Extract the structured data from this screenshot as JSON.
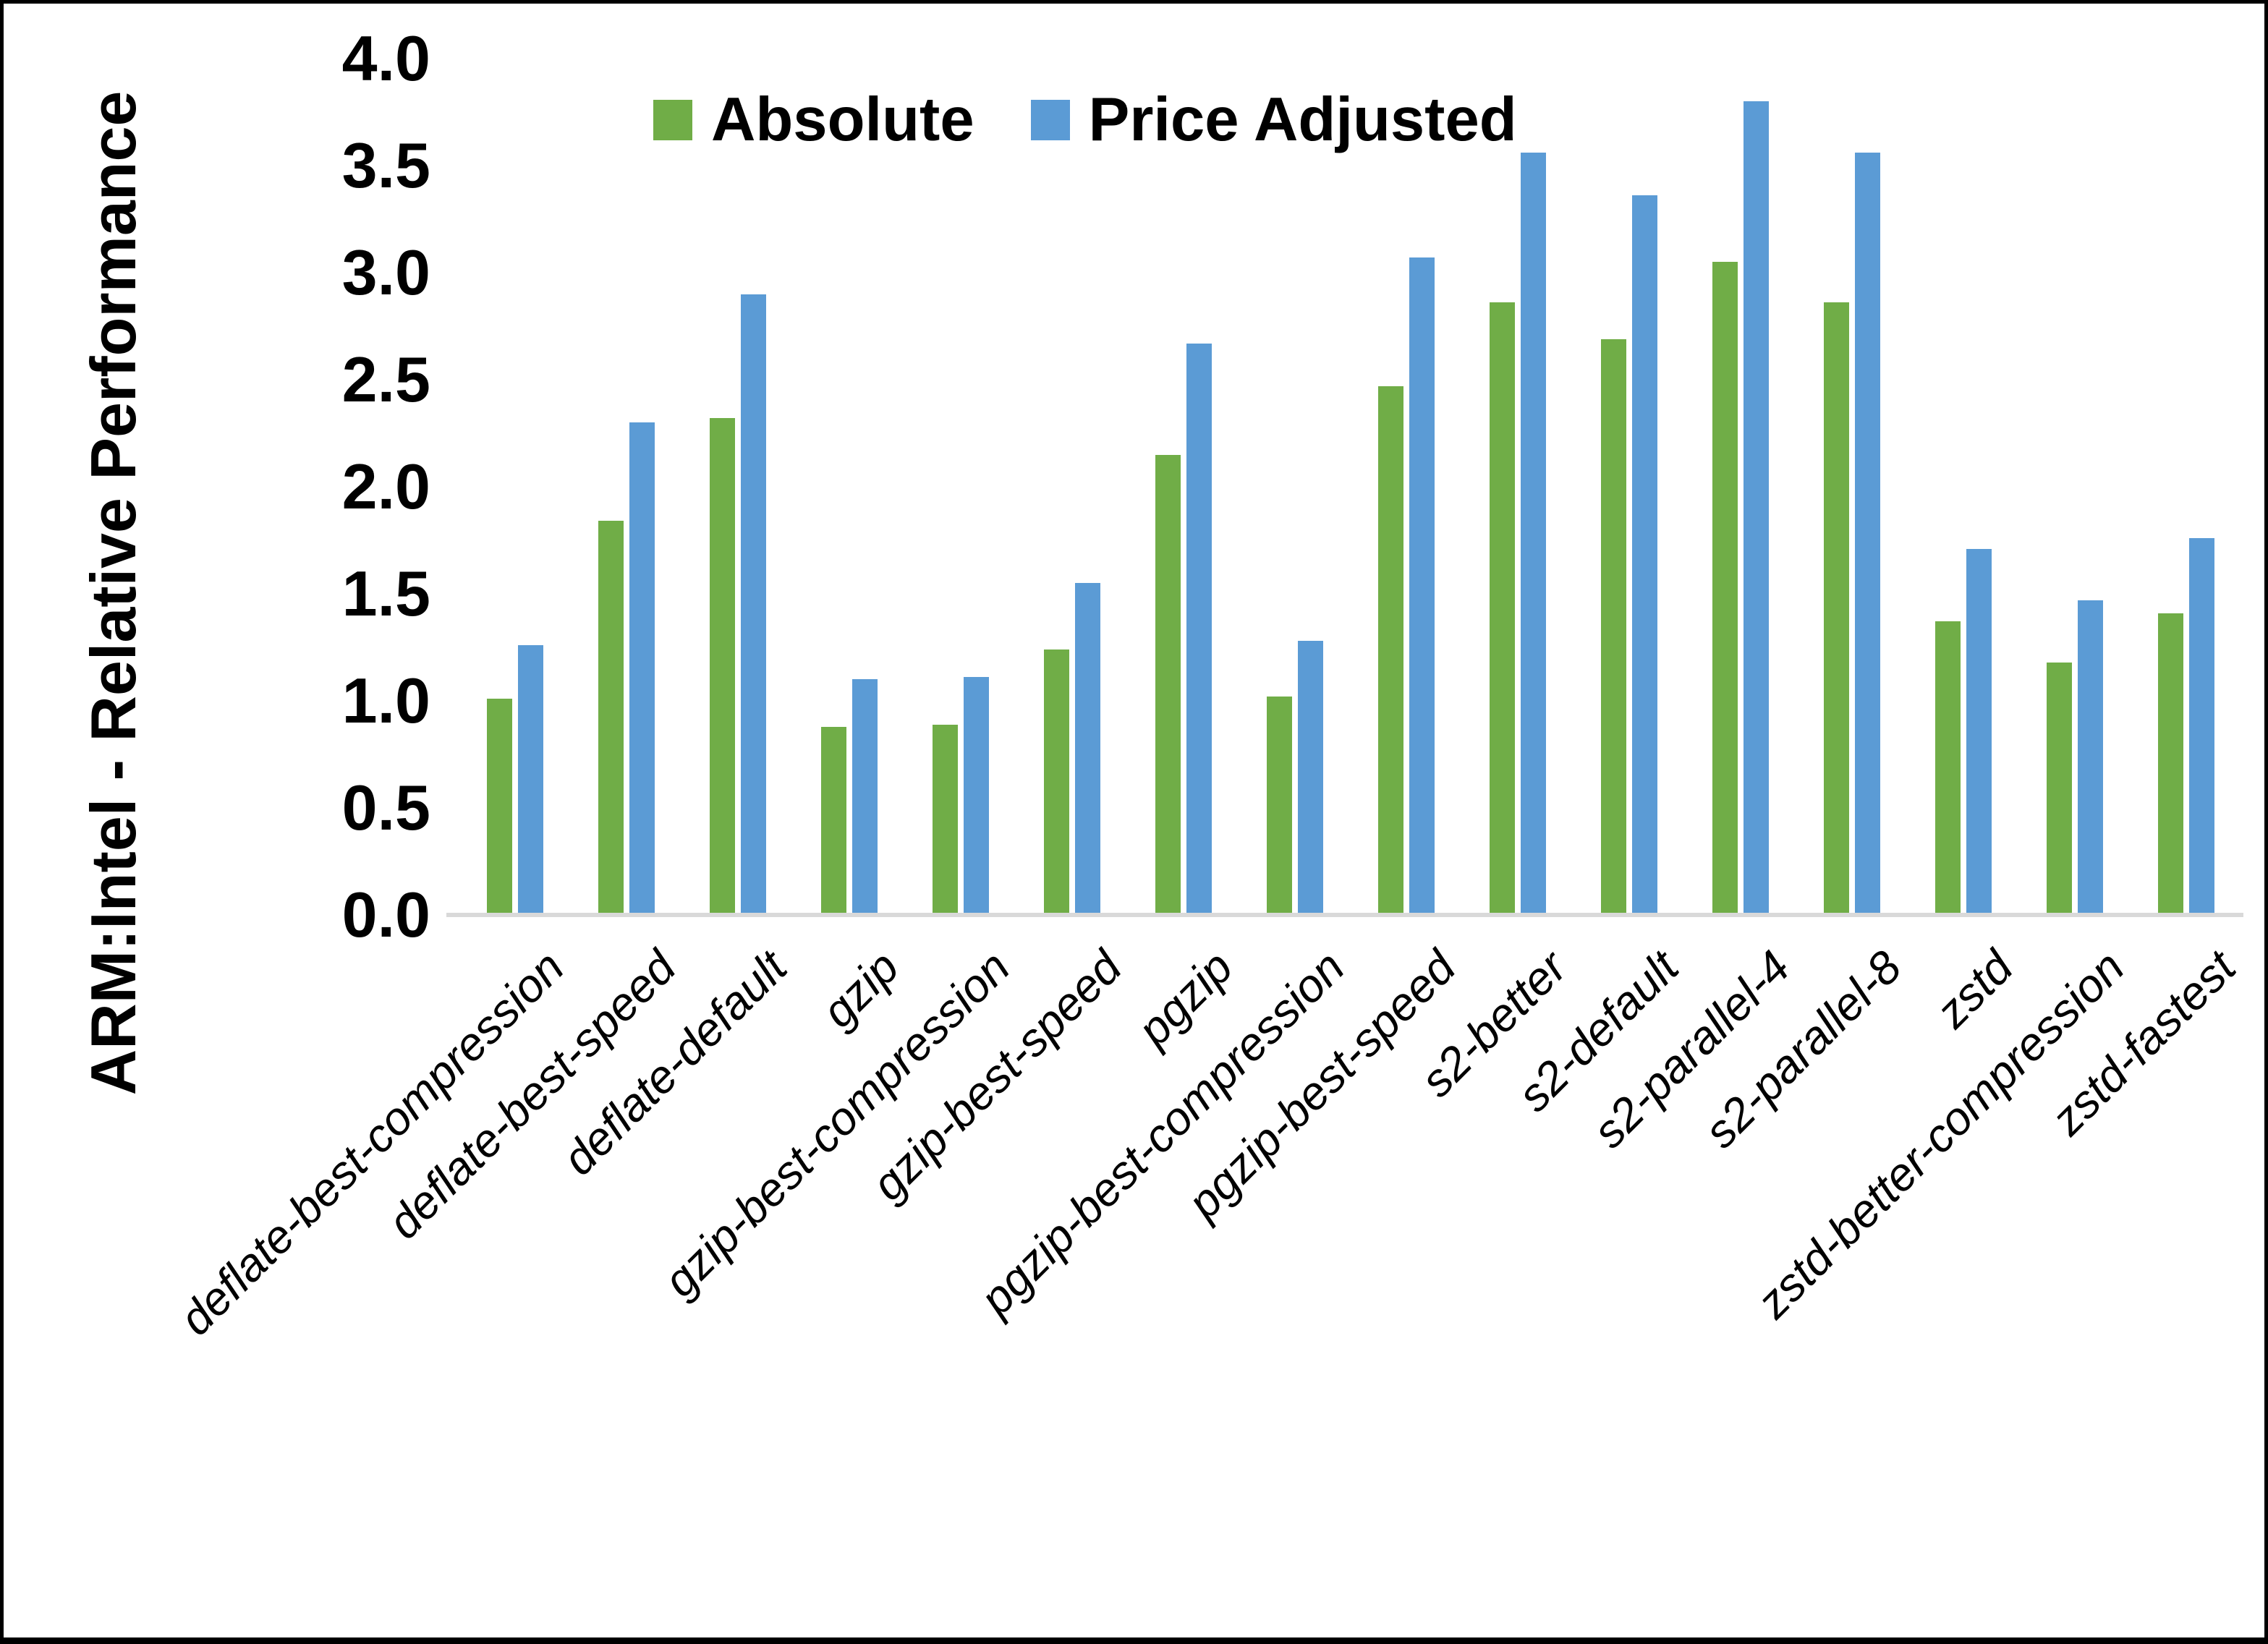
{
  "chart_data": {
    "type": "bar",
    "title": "",
    "ylabel": "ARM:Intel - Relative Performance",
    "xlabel": "",
    "ylim": [
      0.0,
      4.0
    ],
    "ytick_step": 0.5,
    "ytick_labels": [
      "0.0",
      "0.5",
      "1.0",
      "1.5",
      "2.0",
      "2.5",
      "3.0",
      "3.5",
      "4.0"
    ],
    "grid": false,
    "legend_position": "top-center",
    "categories": [
      "deflate-best-compression",
      "deflate-best-speed",
      "deflate-default",
      "gzip",
      "gzip-best-compression",
      "gzip-best-speed",
      "pgzip",
      "pgzip-best-compression",
      "pgzip-best-speed",
      "s2-better",
      "s2-default",
      "s2-parallel-4",
      "s2-parallel-8",
      "zstd",
      "zstd-better-compression",
      "zstd-fastest"
    ],
    "series": [
      {
        "name": "Absolute",
        "color": "#70AD47",
        "values": [
          1.01,
          1.84,
          2.32,
          0.88,
          0.89,
          1.24,
          2.15,
          1.02,
          2.47,
          2.86,
          2.69,
          3.05,
          2.86,
          1.37,
          1.18,
          1.41
        ]
      },
      {
        "name": "Price Adjusted",
        "color": "#5B9BD5",
        "values": [
          1.26,
          2.3,
          2.9,
          1.1,
          1.11,
          1.55,
          2.67,
          1.28,
          3.07,
          3.56,
          3.36,
          3.8,
          3.56,
          1.71,
          1.47,
          1.76
        ]
      }
    ]
  },
  "colors": {
    "background": "#FFFFFF",
    "border": "#000000",
    "axis_line": "#D9D9D9",
    "text": "#000000"
  }
}
